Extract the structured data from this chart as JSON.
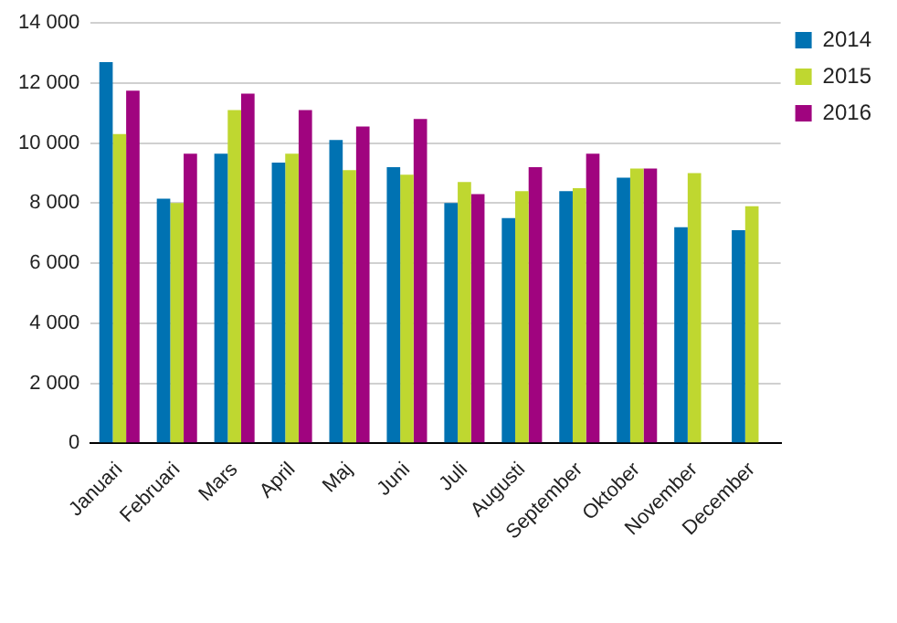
{
  "chart_data": {
    "type": "bar",
    "categories": [
      "Januari",
      "Februari",
      "Mars",
      "April",
      "Maj",
      "Juni",
      "Juli",
      "Augusti",
      "September",
      "Oktober",
      "November",
      "December"
    ],
    "series": [
      {
        "name": "2014",
        "color": "#0072b2",
        "values": [
          12700,
          8150,
          9650,
          9350,
          10100,
          9200,
          8000,
          7500,
          8400,
          8850,
          7200,
          7100
        ]
      },
      {
        "name": "2015",
        "color": "#bfd730",
        "values": [
          10300,
          8000,
          11100,
          9650,
          9100,
          8950,
          8700,
          8400,
          8500,
          9150,
          9000,
          7900
        ]
      },
      {
        "name": "2016",
        "color": "#a0047f",
        "values": [
          11750,
          9650,
          11650,
          11100,
          10550,
          10800,
          8300,
          9200,
          9650,
          9150,
          null,
          null
        ]
      }
    ],
    "ylim": [
      0,
      14000
    ],
    "yticks": [
      0,
      {
        "value": 2000,
        "label": "2 000"
      },
      {
        "value": 4000,
        "label": "4 000"
      },
      {
        "value": 6000,
        "label": "6 000"
      },
      {
        "value": 8000,
        "label": "8 000"
      },
      {
        "value": 10000,
        "label": "10 000"
      },
      {
        "value": 12000,
        "label": "12 000"
      },
      {
        "value": 14000,
        "label": "14 000"
      }
    ],
    "grid": "y",
    "legend": "top right"
  }
}
